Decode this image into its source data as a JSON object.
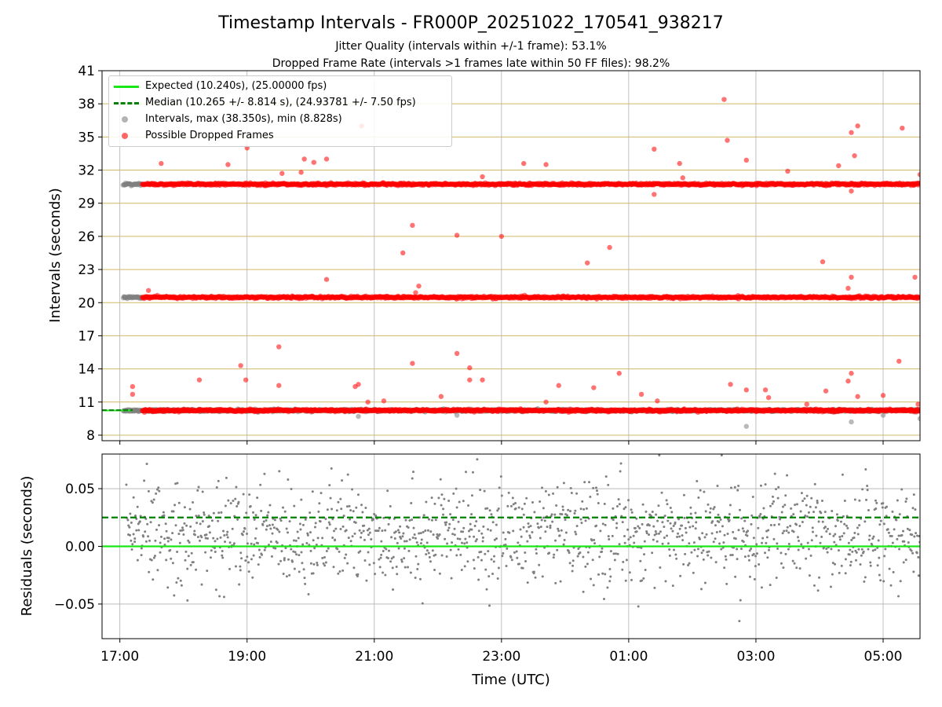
{
  "figure": {
    "title": "Timestamp Intervals - FR000P_20251022_170541_938217",
    "subtitle_1": "Jitter Quality (intervals within +/-1 frame): 53.1%",
    "subtitle_2": "Dropped Frame Rate (intervals >1 frames late within 50 FF files): 98.2%"
  },
  "chart_data": [
    {
      "type": "scatter",
      "panel": "top",
      "xlabel": "",
      "ylabel": "Intervals (seconds)",
      "xlim_hours": [
        16.72,
        29.58
      ],
      "ylim": [
        7.5,
        41
      ],
      "yticks": [
        8,
        11,
        14,
        17,
        20,
        23,
        26,
        29,
        32,
        35,
        38,
        41
      ],
      "grid": true,
      "legend_position": "top-left",
      "legend": [
        {
          "label": "Expected (10.240s), (25.00000 fps)",
          "style": "line",
          "color": "#18e818"
        },
        {
          "label": "Median (10.265 +/- 8.814 s), (24.93781 +/- 7.50 fps)",
          "style": "dashed",
          "color": "#008000"
        },
        {
          "label": "Intervals, max (38.350s), min (8.828s)",
          "style": "dot",
          "color": "#808080"
        },
        {
          "label": "Possible Dropped Frames",
          "style": "dot",
          "color": "#ff0000"
        }
      ],
      "expected_interval": 10.24,
      "median_interval": 10.265,
      "bands": [
        {
          "name": "Intervals",
          "level": 10.24,
          "start_hour": 17.05,
          "end_hour": 29.58,
          "color": "#808080"
        },
        {
          "name": "Intervals",
          "level": 20.48,
          "start_hour": 17.05,
          "end_hour": 17.35,
          "color": "#808080"
        },
        {
          "name": "Intervals",
          "level": 30.72,
          "start_hour": 17.05,
          "end_hour": 17.35,
          "color": "#808080"
        },
        {
          "name": "Possible Dropped Frames",
          "level": 10.24,
          "start_hour": 17.35,
          "end_hour": 29.58,
          "color": "#ff0000"
        },
        {
          "name": "Possible Dropped Frames",
          "level": 20.48,
          "start_hour": 17.35,
          "end_hour": 29.58,
          "color": "#ff0000"
        },
        {
          "name": "Possible Dropped Frames",
          "level": 30.72,
          "start_hour": 17.35,
          "end_hour": 29.58,
          "color": "#ff0000"
        }
      ],
      "outliers": [
        [
          17.65,
          32.6
        ],
        [
          17.2,
          12.4
        ],
        [
          17.2,
          11.7
        ],
        [
          17.45,
          21.1
        ],
        [
          18.25,
          13.0
        ],
        [
          18.7,
          32.5
        ],
        [
          18.9,
          14.3
        ],
        [
          18.98,
          13.0
        ],
        [
          19.0,
          34.0
        ],
        [
          19.5,
          12.5
        ],
        [
          19.5,
          16.0
        ],
        [
          19.55,
          31.7
        ],
        [
          19.85,
          31.8
        ],
        [
          19.9,
          33.0
        ],
        [
          20.05,
          32.7
        ],
        [
          20.25,
          33.0
        ],
        [
          20.25,
          22.1
        ],
        [
          20.7,
          12.4
        ],
        [
          20.75,
          12.6
        ],
        [
          20.8,
          36.0
        ],
        [
          20.9,
          11.0
        ],
        [
          21.15,
          11.1
        ],
        [
          21.45,
          24.5
        ],
        [
          21.6,
          27.0
        ],
        [
          21.6,
          14.5
        ],
        [
          21.7,
          21.5
        ],
        [
          21.65,
          20.9
        ],
        [
          22.05,
          11.5
        ],
        [
          22.3,
          15.4
        ],
        [
          22.3,
          26.1
        ],
        [
          22.5,
          14.1
        ],
        [
          22.5,
          13.0
        ],
        [
          22.7,
          13.0
        ],
        [
          22.7,
          31.4
        ],
        [
          23.0,
          26.0
        ],
        [
          23.35,
          32.6
        ],
        [
          23.7,
          32.5
        ],
        [
          23.7,
          11.0
        ],
        [
          23.9,
          12.5
        ],
        [
          24.35,
          23.6
        ],
        [
          24.45,
          12.3
        ],
        [
          24.7,
          25.0
        ],
        [
          24.85,
          13.6
        ],
        [
          25.2,
          11.7
        ],
        [
          25.4,
          33.9
        ],
        [
          25.4,
          29.8
        ],
        [
          25.45,
          11.1
        ],
        [
          25.8,
          32.6
        ],
        [
          25.85,
          31.3
        ],
        [
          26.5,
          38.4
        ],
        [
          26.55,
          34.7
        ],
        [
          26.6,
          12.6
        ],
        [
          26.85,
          12.1
        ],
        [
          26.85,
          32.9
        ],
        [
          27.15,
          12.1
        ],
        [
          27.2,
          11.4
        ],
        [
          27.5,
          31.9
        ],
        [
          27.8,
          10.8
        ],
        [
          28.05,
          23.7
        ],
        [
          28.1,
          12.0
        ],
        [
          28.3,
          10.2
        ],
        [
          28.3,
          32.4
        ],
        [
          28.55,
          33.3
        ],
        [
          28.45,
          12.9
        ],
        [
          28.5,
          13.6
        ],
        [
          28.45,
          21.3
        ],
        [
          28.5,
          22.3
        ],
        [
          28.5,
          35.4
        ],
        [
          28.6,
          36.0
        ],
        [
          28.6,
          11.5
        ],
        [
          29.0,
          11.6
        ],
        [
          29.3,
          35.8
        ],
        [
          29.25,
          14.7
        ],
        [
          29.5,
          22.3
        ],
        [
          29.55,
          10.8
        ],
        [
          29.58,
          31.6
        ],
        [
          28.5,
          9.2
        ],
        [
          26.85,
          8.8
        ],
        [
          22.3,
          9.8
        ],
        [
          20.75,
          9.7
        ],
        [
          29.0,
          9.8
        ],
        [
          29.58,
          9.5
        ],
        [
          28.5,
          30.1
        ]
      ]
    },
    {
      "type": "scatter",
      "panel": "bottom",
      "xlabel": "Time (UTC)",
      "ylabel": "Residuals (seconds)",
      "xlim_hours": [
        16.72,
        29.58
      ],
      "ylim": [
        -0.08,
        0.08
      ],
      "yticks": [
        -0.05,
        0.0,
        0.05
      ],
      "ytick_labels": [
        "−0.05",
        "0.00",
        "0.05"
      ],
      "xticks_hours": [
        17,
        19,
        21,
        23,
        25,
        27,
        29
      ],
      "xtick_labels": [
        "17:00",
        "19:00",
        "21:00",
        "23:00",
        "01:00",
        "03:00",
        "05:00"
      ],
      "grid": true,
      "zero_line": {
        "value": 0.0,
        "color": "#18e818"
      },
      "median_line": {
        "value": 0.025,
        "color": "#008000"
      },
      "residual_points_color": "#808080",
      "residual_time_range_hours": [
        17.1,
        29.58
      ],
      "residual_center": 0.01,
      "residual_spread": 0.022
    }
  ]
}
